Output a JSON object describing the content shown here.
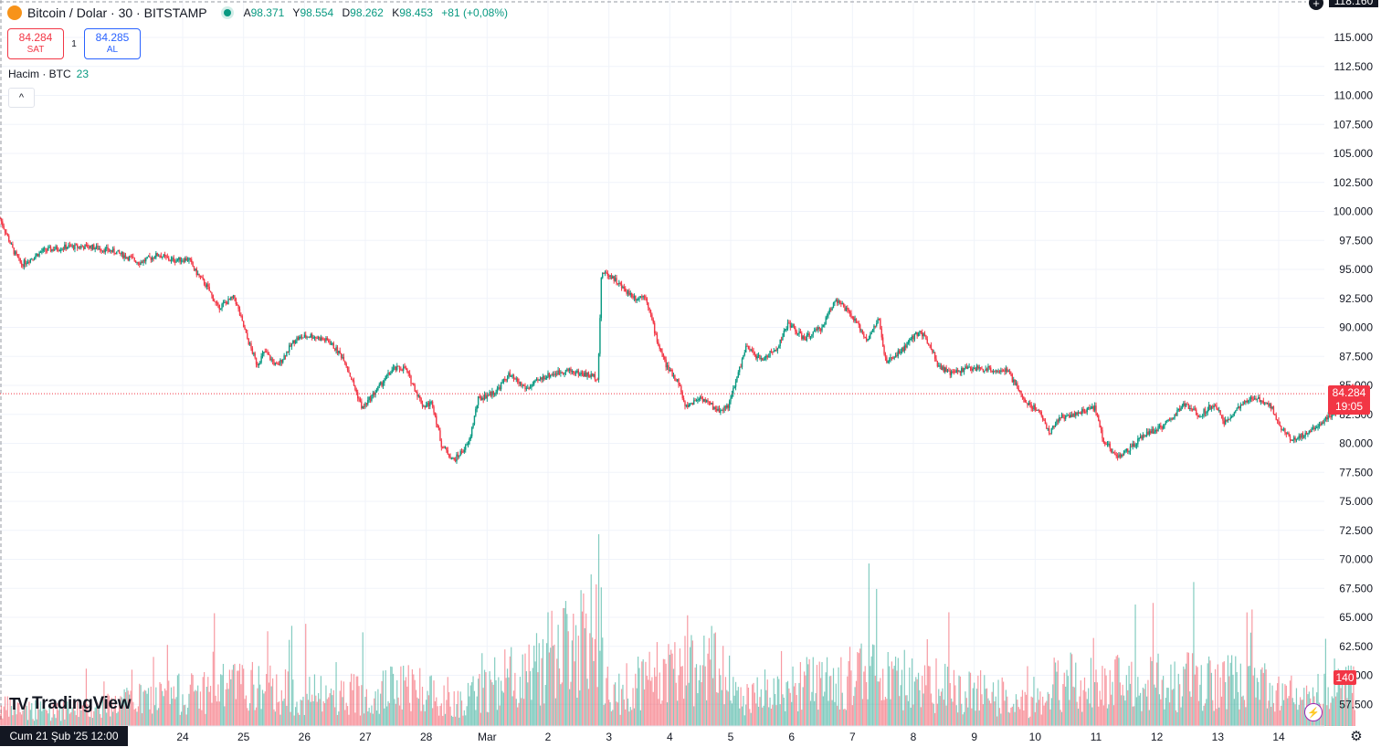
{
  "header": {
    "coin_glyph": "₿",
    "symbol": "Bitcoin / Dolar · 30 · BITSTAMP",
    "open_label": "A",
    "open": "98.371",
    "high_label": "Y",
    "high": "98.554",
    "low_label": "D",
    "low": "98.262",
    "close_label": "K",
    "close": "98.453",
    "change": "+81 (+0,08%)"
  },
  "trade": {
    "sell_price": "84.284",
    "sell_label": "SAT",
    "quantity": "1",
    "buy_price": "84.285",
    "buy_label": "AL"
  },
  "volume_legend": {
    "label": "Hacim · BTC",
    "value": "23"
  },
  "collapse_glyph": "^",
  "logo": {
    "mark": "TV",
    "text": "TradingView"
  },
  "crosshair_date": "Cum 21 Şub '25   12:00",
  "last_price_badge": {
    "price": "84.284",
    "countdown": "19:05"
  },
  "volume_badge": "140",
  "top_badge": "118.160",
  "plus_glyph": "+",
  "flash_glyph": "⚡",
  "settings_glyph": "⚙",
  "colors": {
    "up": "#089981",
    "down": "#f23645",
    "grid": "#f0f3fa",
    "text": "#131722"
  },
  "chart_data": {
    "type": "candlestick",
    "interval": "30",
    "yaxis_ticks": [
      "57.500",
      "60.000",
      "62.500",
      "65.000",
      "67.500",
      "70.000",
      "72.500",
      "75.000",
      "77.500",
      "80.000",
      "82.500",
      "85.000",
      "87.500",
      "90.000",
      "92.500",
      "95.000",
      "97.500",
      "100.000",
      "102.500",
      "105.000",
      "107.500",
      "110.000",
      "112.500",
      "115.000"
    ],
    "ytick_values": [
      57500,
      60000,
      62500,
      65000,
      67500,
      70000,
      72500,
      75000,
      77500,
      80000,
      82500,
      85000,
      87500,
      90000,
      92500,
      95000,
      97500,
      100000,
      102500,
      105000,
      107500,
      110000,
      112500,
      115000
    ],
    "xaxis_ticks": [
      "24",
      "25",
      "26",
      "27",
      "28",
      "Mar",
      "2",
      "3",
      "4",
      "5",
      "6",
      "7",
      "8",
      "9",
      "10",
      "11",
      "12",
      "13",
      "14"
    ],
    "xtick_days": [
      3.5,
      4.5,
      5.5,
      6.5,
      7.5,
      8.5,
      9.5,
      10.5,
      11.5,
      12.5,
      13.5,
      14.5,
      15.5,
      16.5,
      17.5,
      18.5,
      19.5,
      20.5,
      21.5
    ],
    "x_range_days": [
      0.5,
      22.25
    ],
    "last_price": 84284,
    "price_path": [
      [
        0.5,
        99400
      ],
      [
        0.72,
        96600
      ],
      [
        0.85,
        95400
      ],
      [
        1.2,
        96600
      ],
      [
        1.6,
        96950
      ],
      [
        2.0,
        96950
      ],
      [
        2.4,
        96500
      ],
      [
        2.8,
        95600
      ],
      [
        3.0,
        96050
      ],
      [
        3.1,
        96300
      ],
      [
        3.3,
        95800
      ],
      [
        3.6,
        95900
      ],
      [
        3.7,
        94900
      ],
      [
        3.9,
        93500
      ],
      [
        4.08,
        91700
      ],
      [
        4.35,
        92600
      ],
      [
        4.55,
        89200
      ],
      [
        4.72,
        86800
      ],
      [
        4.85,
        87900
      ],
      [
        5.05,
        86600
      ],
      [
        5.35,
        89000
      ],
      [
        5.6,
        89300
      ],
      [
        5.9,
        88800
      ],
      [
        6.15,
        87300
      ],
      [
        6.45,
        83000
      ],
      [
        6.7,
        84700
      ],
      [
        6.95,
        86400
      ],
      [
        7.15,
        86500
      ],
      [
        7.45,
        83200
      ],
      [
        7.6,
        83500
      ],
      [
        7.75,
        79900
      ],
      [
        7.95,
        78500
      ],
      [
        8.2,
        80000
      ],
      [
        8.35,
        83800
      ],
      [
        8.65,
        84500
      ],
      [
        8.85,
        85900
      ],
      [
        9.15,
        84700
      ],
      [
        9.45,
        85800
      ],
      [
        9.8,
        86300
      ],
      [
        10.15,
        85900
      ],
      [
        10.32,
        85700
      ],
      [
        10.38,
        94800
      ],
      [
        10.55,
        94400
      ],
      [
        10.72,
        93400
      ],
      [
        10.95,
        92500
      ],
      [
        11.1,
        92800
      ],
      [
        11.3,
        88700
      ],
      [
        11.45,
        86600
      ],
      [
        11.65,
        85200
      ],
      [
        11.75,
        83100
      ],
      [
        12.0,
        84000
      ],
      [
        12.3,
        82800
      ],
      [
        12.47,
        83300
      ],
      [
        12.75,
        88300
      ],
      [
        13.0,
        87200
      ],
      [
        13.25,
        88100
      ],
      [
        13.45,
        90400
      ],
      [
        13.7,
        89000
      ],
      [
        14.0,
        90000
      ],
      [
        14.22,
        92500
      ],
      [
        14.48,
        91000
      ],
      [
        14.75,
        88900
      ],
      [
        14.93,
        90800
      ],
      [
        15.05,
        86900
      ],
      [
        15.3,
        88000
      ],
      [
        15.6,
        89700
      ],
      [
        15.77,
        88600
      ],
      [
        15.9,
        86800
      ],
      [
        16.1,
        86000
      ],
      [
        16.4,
        86500
      ],
      [
        16.75,
        86400
      ],
      [
        17.05,
        86200
      ],
      [
        17.35,
        83500
      ],
      [
        17.58,
        82800
      ],
      [
        17.72,
        80900
      ],
      [
        17.9,
        82200
      ],
      [
        18.2,
        82600
      ],
      [
        18.48,
        83100
      ],
      [
        18.62,
        80300
      ],
      [
        18.85,
        78800
      ],
      [
        19.08,
        79600
      ],
      [
        19.3,
        80800
      ],
      [
        19.5,
        81200
      ],
      [
        19.7,
        81900
      ],
      [
        19.95,
        83400
      ],
      [
        20.2,
        82400
      ],
      [
        20.45,
        83500
      ],
      [
        20.6,
        81700
      ],
      [
        20.8,
        82900
      ],
      [
        21.1,
        84000
      ],
      [
        21.35,
        83400
      ],
      [
        21.55,
        81300
      ],
      [
        21.72,
        80300
      ],
      [
        21.9,
        80700
      ],
      [
        22.1,
        81400
      ],
      [
        22.35,
        82400
      ],
      [
        22.55,
        83200
      ],
      [
        22.7,
        84900
      ],
      [
        22.75,
        84284
      ]
    ],
    "volume_profile": [
      [
        0.5,
        25
      ],
      [
        1.5,
        20
      ],
      [
        4.4,
        55
      ],
      [
        5.9,
        40
      ],
      [
        7.3,
        55
      ],
      [
        8.1,
        35
      ],
      [
        10.35,
        130
      ],
      [
        10.5,
        40
      ],
      [
        11.3,
        70
      ],
      [
        12.3,
        90
      ],
      [
        12.6,
        40
      ],
      [
        14.75,
        70
      ],
      [
        17.4,
        35
      ],
      [
        17.8,
        60
      ],
      [
        19.3,
        60
      ],
      [
        20.7,
        60
      ],
      [
        21.8,
        35
      ],
      [
        22.7,
        55
      ]
    ]
  }
}
